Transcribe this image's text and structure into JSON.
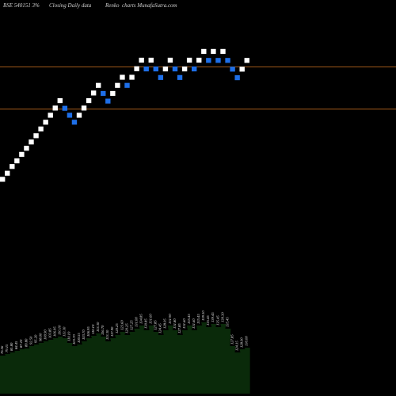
{
  "chart_data": {
    "type": "renko",
    "title_parts": [
      "BSE 540151 3%",
      "Closing Daily data",
      "Renko",
      "charts MunafaSutra.com"
    ],
    "colors": {
      "background": "#000000",
      "up_brick": "#ffffff",
      "down_brick": "#1e6fe8",
      "reference_line": "#b5651d",
      "volume_fill": "#0a2a0a",
      "volume_label": "#e8e8e8"
    },
    "y_range": [
      74,
      148
    ],
    "reference_lines": [
      128.8,
      110
    ],
    "bricks": [
      {
        "dir": "up",
        "close": 78.8
      },
      {
        "dir": "up",
        "close": 81.5
      },
      {
        "dir": "up",
        "close": 84.5
      },
      {
        "dir": "up",
        "close": 87.0
      },
      {
        "dir": "up",
        "close": 89.9
      },
      {
        "dir": "up",
        "close": 92.6
      },
      {
        "dir": "up",
        "close": 95.4
      },
      {
        "dir": "up",
        "close": 98.2
      },
      {
        "dir": "up",
        "close": 101.2
      },
      {
        "dir": "up",
        "close": 104.2
      },
      {
        "dir": "up",
        "close": 107.3
      },
      {
        "dir": "up",
        "close": 110.5
      },
      {
        "dir": "up",
        "close": 113.8
      },
      {
        "dir": "down",
        "close": 110.4
      },
      {
        "dir": "down",
        "close": 107.3
      },
      {
        "dir": "down",
        "close": 104.2
      },
      {
        "dir": "up",
        "close": 107.3
      },
      {
        "dir": "up",
        "close": 110.5
      },
      {
        "dir": "up",
        "close": 113.8
      },
      {
        "dir": "up",
        "close": 117.2
      },
      {
        "dir": "up",
        "close": 120.6
      },
      {
        "dir": "down",
        "close": 117.0
      },
      {
        "dir": "down",
        "close": 113.6
      },
      {
        "dir": "up",
        "close": 117.0
      },
      {
        "dir": "up",
        "close": 120.6
      },
      {
        "dir": "up",
        "close": 124.2
      },
      {
        "dir": "down",
        "close": 120.6
      },
      {
        "dir": "up",
        "close": 124.2
      },
      {
        "dir": "up",
        "close": 128.0
      },
      {
        "dir": "up",
        "close": 131.8
      },
      {
        "dir": "down",
        "close": 127.9
      },
      {
        "dir": "up",
        "close": 131.8
      },
      {
        "dir": "down",
        "close": 127.9
      },
      {
        "dir": "down",
        "close": 124.1
      },
      {
        "dir": "up",
        "close": 127.9
      },
      {
        "dir": "up",
        "close": 131.8
      },
      {
        "dir": "down",
        "close": 127.9
      },
      {
        "dir": "down",
        "close": 124.1
      },
      {
        "dir": "up",
        "close": 127.9
      },
      {
        "dir": "up",
        "close": 131.8
      },
      {
        "dir": "down",
        "close": 127.9
      },
      {
        "dir": "up",
        "close": 131.8
      },
      {
        "dir": "up",
        "close": 135.7
      },
      {
        "dir": "down",
        "close": 131.7
      },
      {
        "dir": "up",
        "close": 135.7
      },
      {
        "dir": "down",
        "close": 131.7
      },
      {
        "dir": "up",
        "close": 135.7
      },
      {
        "dir": "down",
        "close": 131.7
      },
      {
        "dir": "down",
        "close": 127.8
      },
      {
        "dir": "down",
        "close": 124.0
      },
      {
        "dir": "up",
        "close": 127.8
      },
      {
        "dir": "up",
        "close": 131.7
      }
    ],
    "volume_profile": [
      48,
      50,
      52,
      54,
      56,
      57,
      60,
      62,
      64,
      66,
      68,
      70,
      72,
      70,
      64,
      60,
      62,
      66,
      70,
      73,
      76,
      72,
      66,
      70,
      74,
      78,
      74,
      78,
      82,
      86,
      80,
      86,
      78,
      74,
      80,
      86,
      80,
      74,
      80,
      86,
      80,
      86,
      90,
      84,
      88,
      84,
      88,
      82,
      60,
      52,
      56,
      58
    ],
    "brick_labels": [
      "76.56",
      "79.15",
      "81.80",
      "84.45",
      "87.10",
      "89.80",
      "92.50",
      "95.20",
      "98.00",
      "100.90",
      "103.85",
      "106.95",
      "110.10",
      "113.30",
      "110.10",
      "103.70",
      "100.55",
      "103.70",
      "106.95",
      "110.10",
      "113.30",
      "116.70",
      "113.30",
      "117.90",
      "120.25",
      "123.60",
      "120.25",
      "127.25",
      "131.00",
      "134.85",
      "130.85",
      "131.60",
      "127.85",
      "124.45",
      "128.05",
      "131.90",
      "131.80",
      "127.85",
      "131.60",
      "135.45",
      "131.60",
      "135.45",
      "139.30",
      "135.45",
      "139.45",
      "135.45",
      "139.30",
      "135.45",
      "127.85",
      "124.15",
      "128.00",
      "130.00"
    ]
  }
}
